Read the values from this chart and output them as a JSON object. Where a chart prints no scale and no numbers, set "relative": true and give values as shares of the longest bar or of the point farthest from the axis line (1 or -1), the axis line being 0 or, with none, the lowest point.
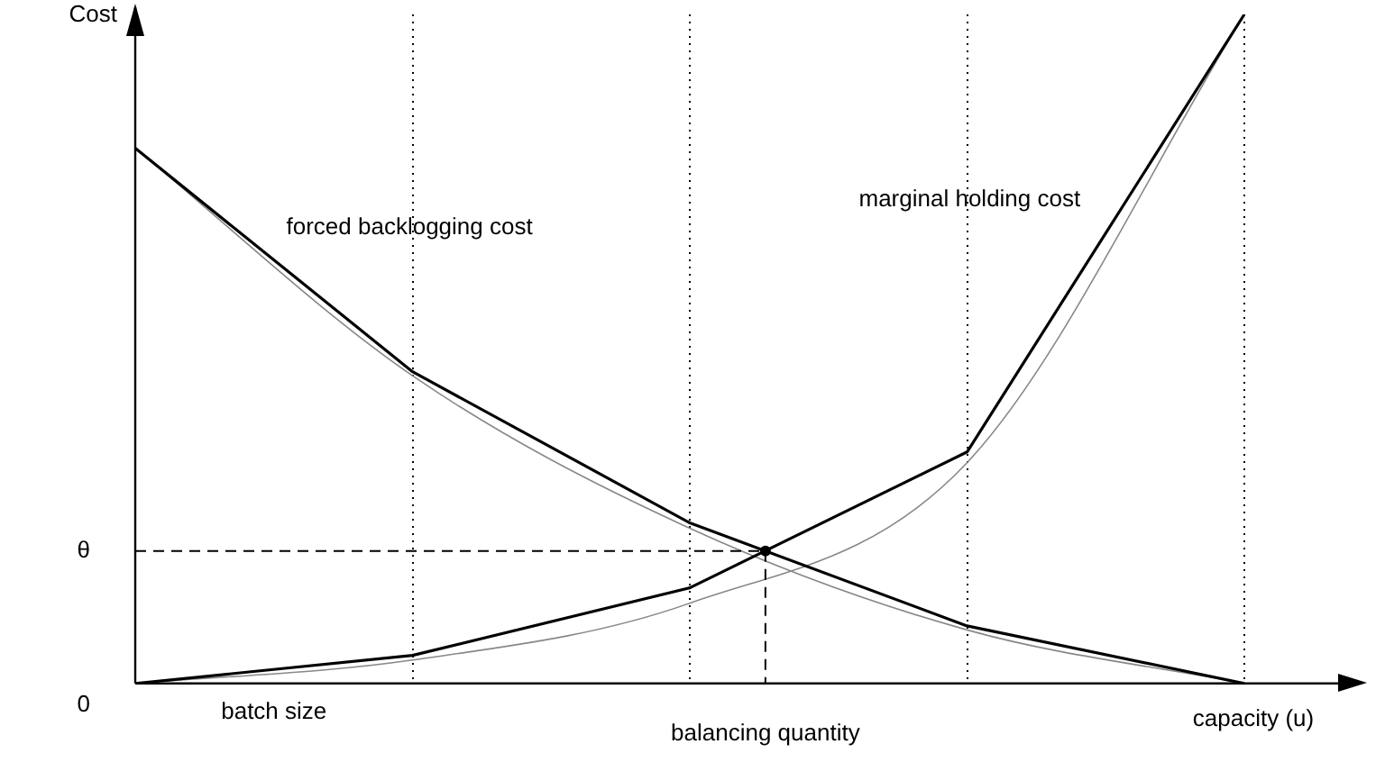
{
  "chart_data": {
    "type": "line",
    "relative": true,
    "ylabel": "Cost",
    "xlabel": "capacity (u)",
    "categories": [
      null,
      null,
      null,
      null,
      null
    ],
    "series": [
      {
        "name": "forced backlogging cost",
        "color": "#000000",
        "values": [
          0.8,
          0.466,
          0.24,
          0.086,
          0
        ]
      },
      {
        "name": "marginal holding cost",
        "color": "#000000",
        "values": [
          0,
          0.042,
          0.143,
          0.346,
          1
        ]
      },
      {
        "color": "#888888",
        "values": [
          0.8,
          0.46,
          0.232,
          0.08,
          0
        ]
      },
      {
        "color": "#888888",
        "values": [
          0,
          0.035,
          0.12,
          0.33,
          1
        ]
      }
    ],
    "ref_lines": [
      {
        "axis": "y",
        "value": 0.198,
        "label": "θ",
        "line_style": "dashed"
      }
    ],
    "annotations": [
      "batch size",
      "balancing quantity",
      "0"
    ],
    "grid": "x",
    "legend": false,
    "marker": "none",
    "line_style": "solid"
  }
}
